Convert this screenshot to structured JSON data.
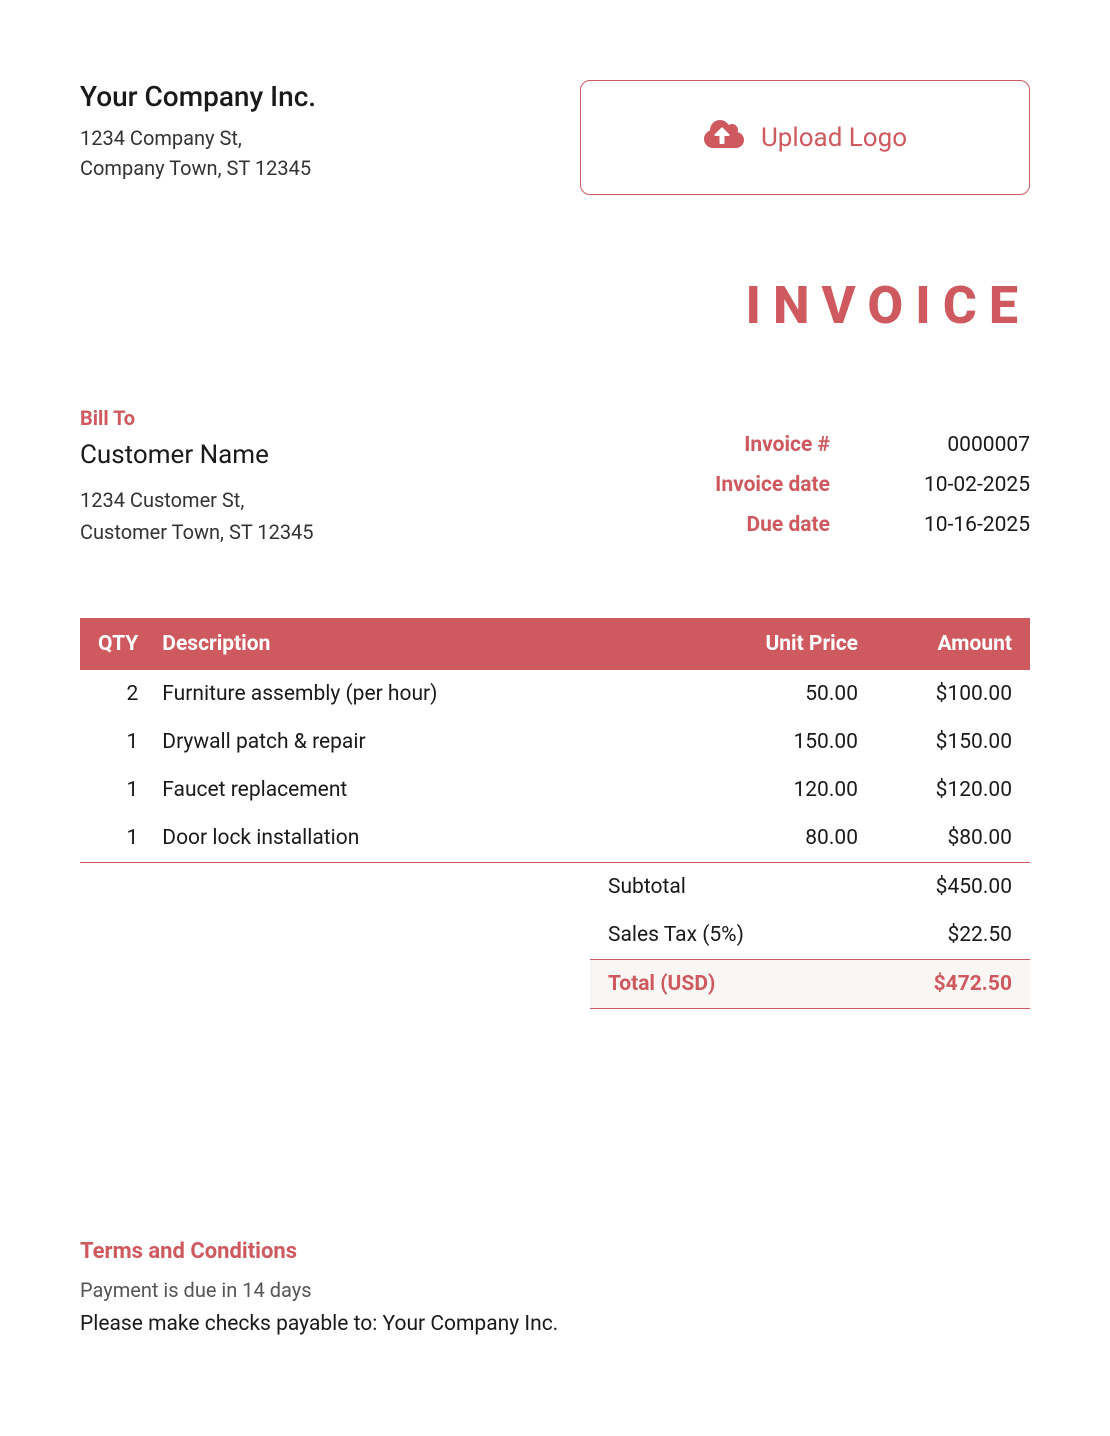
{
  "colors": {
    "accent": "#ce5a5f",
    "text": "#1a1a1a",
    "muted": "#555555",
    "header_text": "#ffffff",
    "total_bg": "#faf6f4",
    "page_bg": "#ffffff"
  },
  "typography": {
    "company_name_size": 28,
    "body_size": 21,
    "doc_title_size": 52,
    "doc_title_letter_spacing": 12
  },
  "company": {
    "name": "Your Company Inc.",
    "address_line1": "1234 Company St,",
    "address_line2": "Company Town, ST 12345"
  },
  "upload": {
    "label": "Upload Logo",
    "icon": "cloud-upload"
  },
  "doc_title": "INVOICE",
  "bill_to": {
    "label": "Bill To",
    "name": "Customer Name",
    "address_line1": "1234 Customer St,",
    "address_line2": "Customer Town, ST 12345"
  },
  "invoice_meta": {
    "number_label": "Invoice #",
    "number": "0000007",
    "date_label": "Invoice date",
    "date": "10-02-2025",
    "due_label": "Due date",
    "due": "10-16-2025"
  },
  "table": {
    "headers": {
      "qty": "QTY",
      "desc": "Description",
      "unit": "Unit Price",
      "amount": "Amount"
    },
    "rows": [
      {
        "qty": "2",
        "desc": "Furniture assembly (per hour)",
        "unit": "50.00",
        "amount": "$100.00"
      },
      {
        "qty": "1",
        "desc": "Drywall patch & repair",
        "unit": "150.00",
        "amount": "$150.00"
      },
      {
        "qty": "1",
        "desc": "Faucet replacement",
        "unit": "120.00",
        "amount": "$120.00"
      },
      {
        "qty": "1",
        "desc": "Door lock installation",
        "unit": "80.00",
        "amount": "$80.00"
      }
    ],
    "col_align": {
      "qty": "right",
      "desc": "left",
      "unit": "right",
      "amount": "right"
    }
  },
  "totals": {
    "subtotal_label": "Subtotal",
    "subtotal": "$450.00",
    "tax_label": "Sales Tax (5%)",
    "tax": "$22.50",
    "total_label": "Total (USD)",
    "total": "$472.50"
  },
  "terms": {
    "title": "Terms and Conditions",
    "line1": "Payment is due in 14 days",
    "line2": "Please make checks payable to: Your Company Inc."
  }
}
